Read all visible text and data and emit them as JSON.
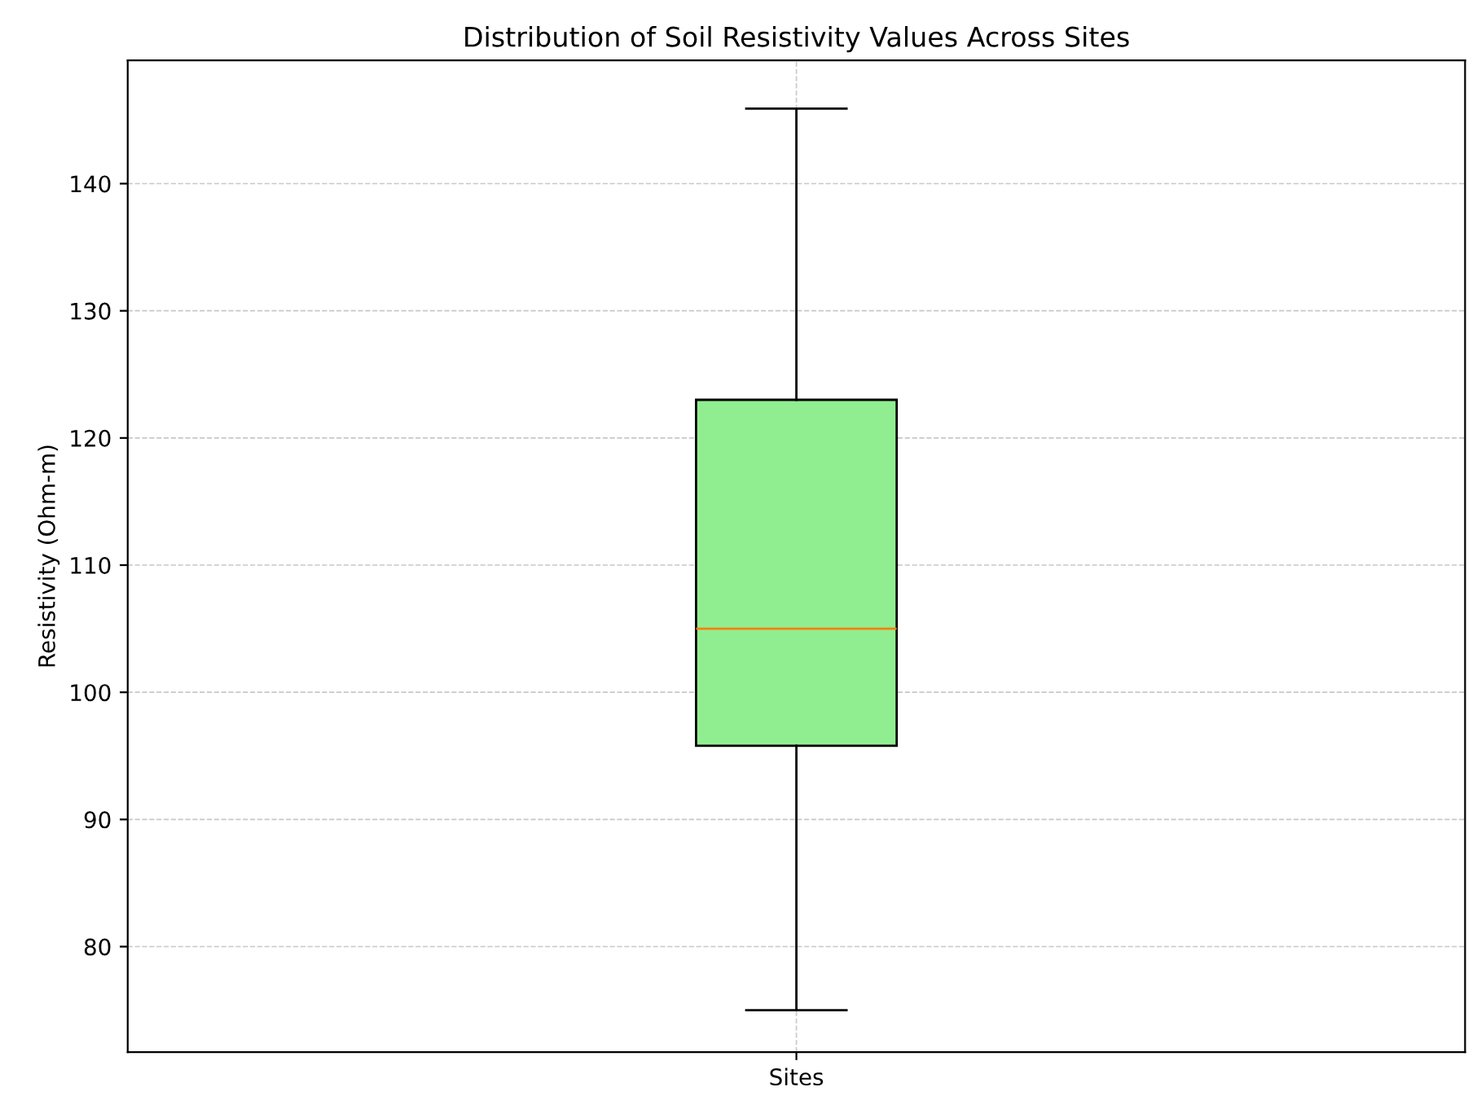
{
  "chart_data": {
    "type": "box",
    "title": "Distribution of Soil Resistivity Values Across Sites",
    "ylabel": "Resistivity (Ohm-m)",
    "categories": [
      "Sites"
    ],
    "series": [
      {
        "color": "#90ee90",
        "boxes": [
          {
            "low": 75.0,
            "q1": 95.8,
            "median": 105.0,
            "q3": 123.0,
            "high": 145.9
          }
        ]
      }
    ],
    "ylim": [
      71.7,
      149.7
    ],
    "yticks": [
      80,
      90,
      100,
      110,
      120,
      130,
      140
    ],
    "grid": true
  }
}
